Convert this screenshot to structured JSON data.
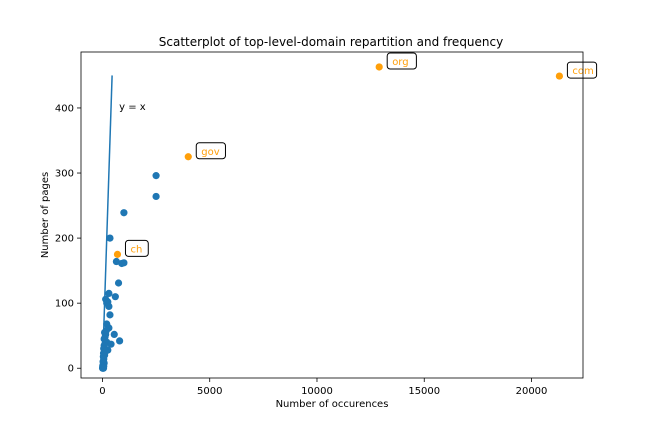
{
  "chart_data": {
    "type": "scatter",
    "title": "Scatterplot of top-level-domain repartition and frequency",
    "xlabel": "Number of occurences",
    "ylabel": "Number of pages",
    "xlim": [
      -1000,
      22400
    ],
    "ylim": [
      -15,
      486
    ],
    "xticks": [
      0,
      5000,
      10000,
      15000,
      20000
    ],
    "yticks": [
      0,
      100,
      200,
      300,
      400
    ],
    "grid": false,
    "colors": {
      "default": "#1f77b4",
      "highlight": "#ff9f0a",
      "line": "#1f77b4"
    },
    "reference_line": {
      "label": "y = x",
      "points": [
        [
          0,
          0
        ],
        [
          450,
          450
        ]
      ]
    },
    "highlighted": [
      {
        "label": "com",
        "x": 21300,
        "y": 449
      },
      {
        "label": "org",
        "x": 12900,
        "y": 463
      },
      {
        "label": "gov",
        "x": 4000,
        "y": 325
      },
      {
        "label": "ch",
        "x": 700,
        "y": 175
      }
    ],
    "points": [
      [
        2500,
        296
      ],
      [
        2500,
        264
      ],
      [
        1000,
        239
      ],
      [
        350,
        200
      ],
      [
        650,
        164
      ],
      [
        900,
        161
      ],
      [
        1000,
        162
      ],
      [
        750,
        131
      ],
      [
        300,
        115
      ],
      [
        600,
        110
      ],
      [
        150,
        106
      ],
      [
        250,
        102
      ],
      [
        200,
        100
      ],
      [
        300,
        95
      ],
      [
        350,
        82
      ],
      [
        200,
        68
      ],
      [
        300,
        62
      ],
      [
        180,
        58
      ],
      [
        100,
        55
      ],
      [
        150,
        52
      ],
      [
        550,
        52
      ],
      [
        120,
        48
      ],
      [
        80,
        45
      ],
      [
        800,
        42
      ],
      [
        200,
        40
      ],
      [
        120,
        38
      ],
      [
        400,
        37
      ],
      [
        80,
        35
      ],
      [
        60,
        30
      ],
      [
        250,
        28
      ],
      [
        150,
        26
      ],
      [
        50,
        23
      ],
      [
        100,
        20
      ],
      [
        40,
        18
      ],
      [
        60,
        14
      ],
      [
        30,
        10
      ],
      [
        80,
        8
      ],
      [
        40,
        6
      ],
      [
        20,
        4
      ],
      [
        60,
        3
      ],
      [
        10,
        2
      ],
      [
        30,
        1
      ],
      [
        5,
        0
      ],
      [
        50,
        0
      ]
    ]
  }
}
